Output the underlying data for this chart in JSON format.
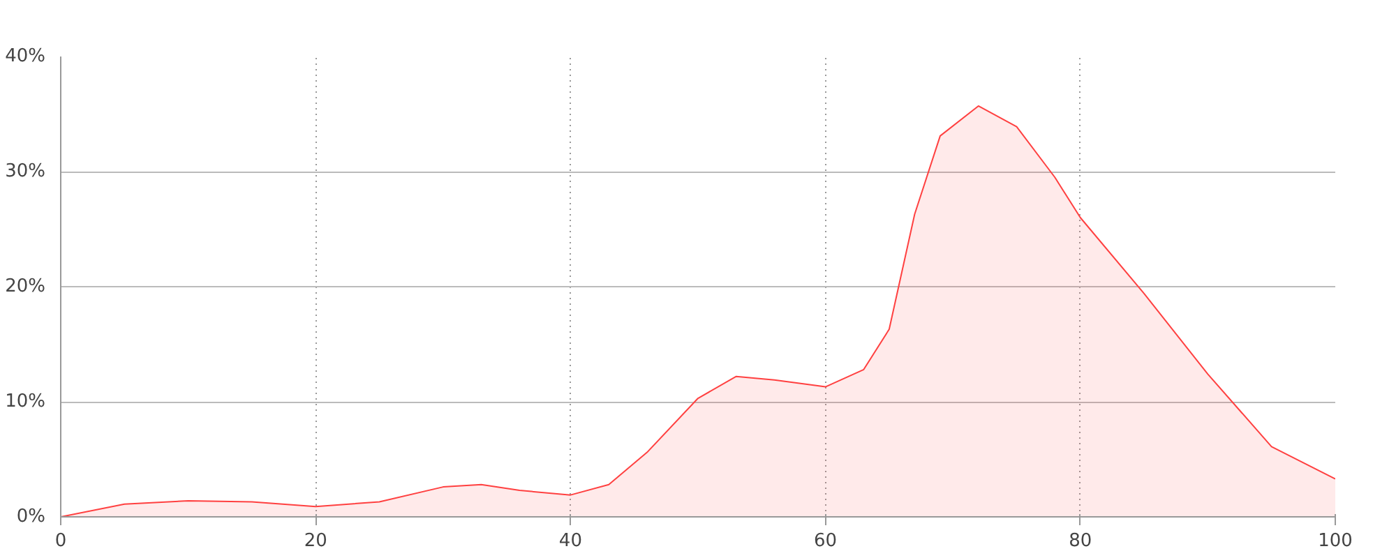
{
  "chart_data": {
    "type": "area",
    "x": [
      0,
      5,
      10,
      15,
      20,
      25,
      30,
      33,
      36,
      40,
      43,
      46,
      50,
      53,
      56,
      60,
      63,
      65,
      67,
      69,
      72,
      75,
      78,
      80,
      85,
      90,
      95,
      100
    ],
    "series": [
      {
        "color": "#ff4040",
        "values": [
          0,
          1.1,
          1.4,
          1.3,
          0.9,
          1.3,
          2.6,
          2.8,
          2.3,
          1.9,
          2.8,
          5.6,
          10.3,
          12.2,
          11.9,
          11.3,
          12.8,
          16.3,
          26.3,
          33.1,
          35.7,
          33.9,
          29.5,
          26,
          19.4,
          12.4,
          6.1,
          3.3
        ]
      }
    ],
    "xlim": [
      0,
      100
    ],
    "xticks": [
      0,
      20,
      40,
      60,
      80,
      100
    ],
    "ylim": [
      0,
      40
    ],
    "yticks": [
      {
        "value": 0,
        "label": "0%"
      },
      {
        "value": 10,
        "label": "10%"
      },
      {
        "value": 20,
        "label": "20%"
      },
      {
        "value": 30,
        "label": "30%"
      },
      {
        "value": 40,
        "label": "40%"
      }
    ],
    "grid": true
  }
}
